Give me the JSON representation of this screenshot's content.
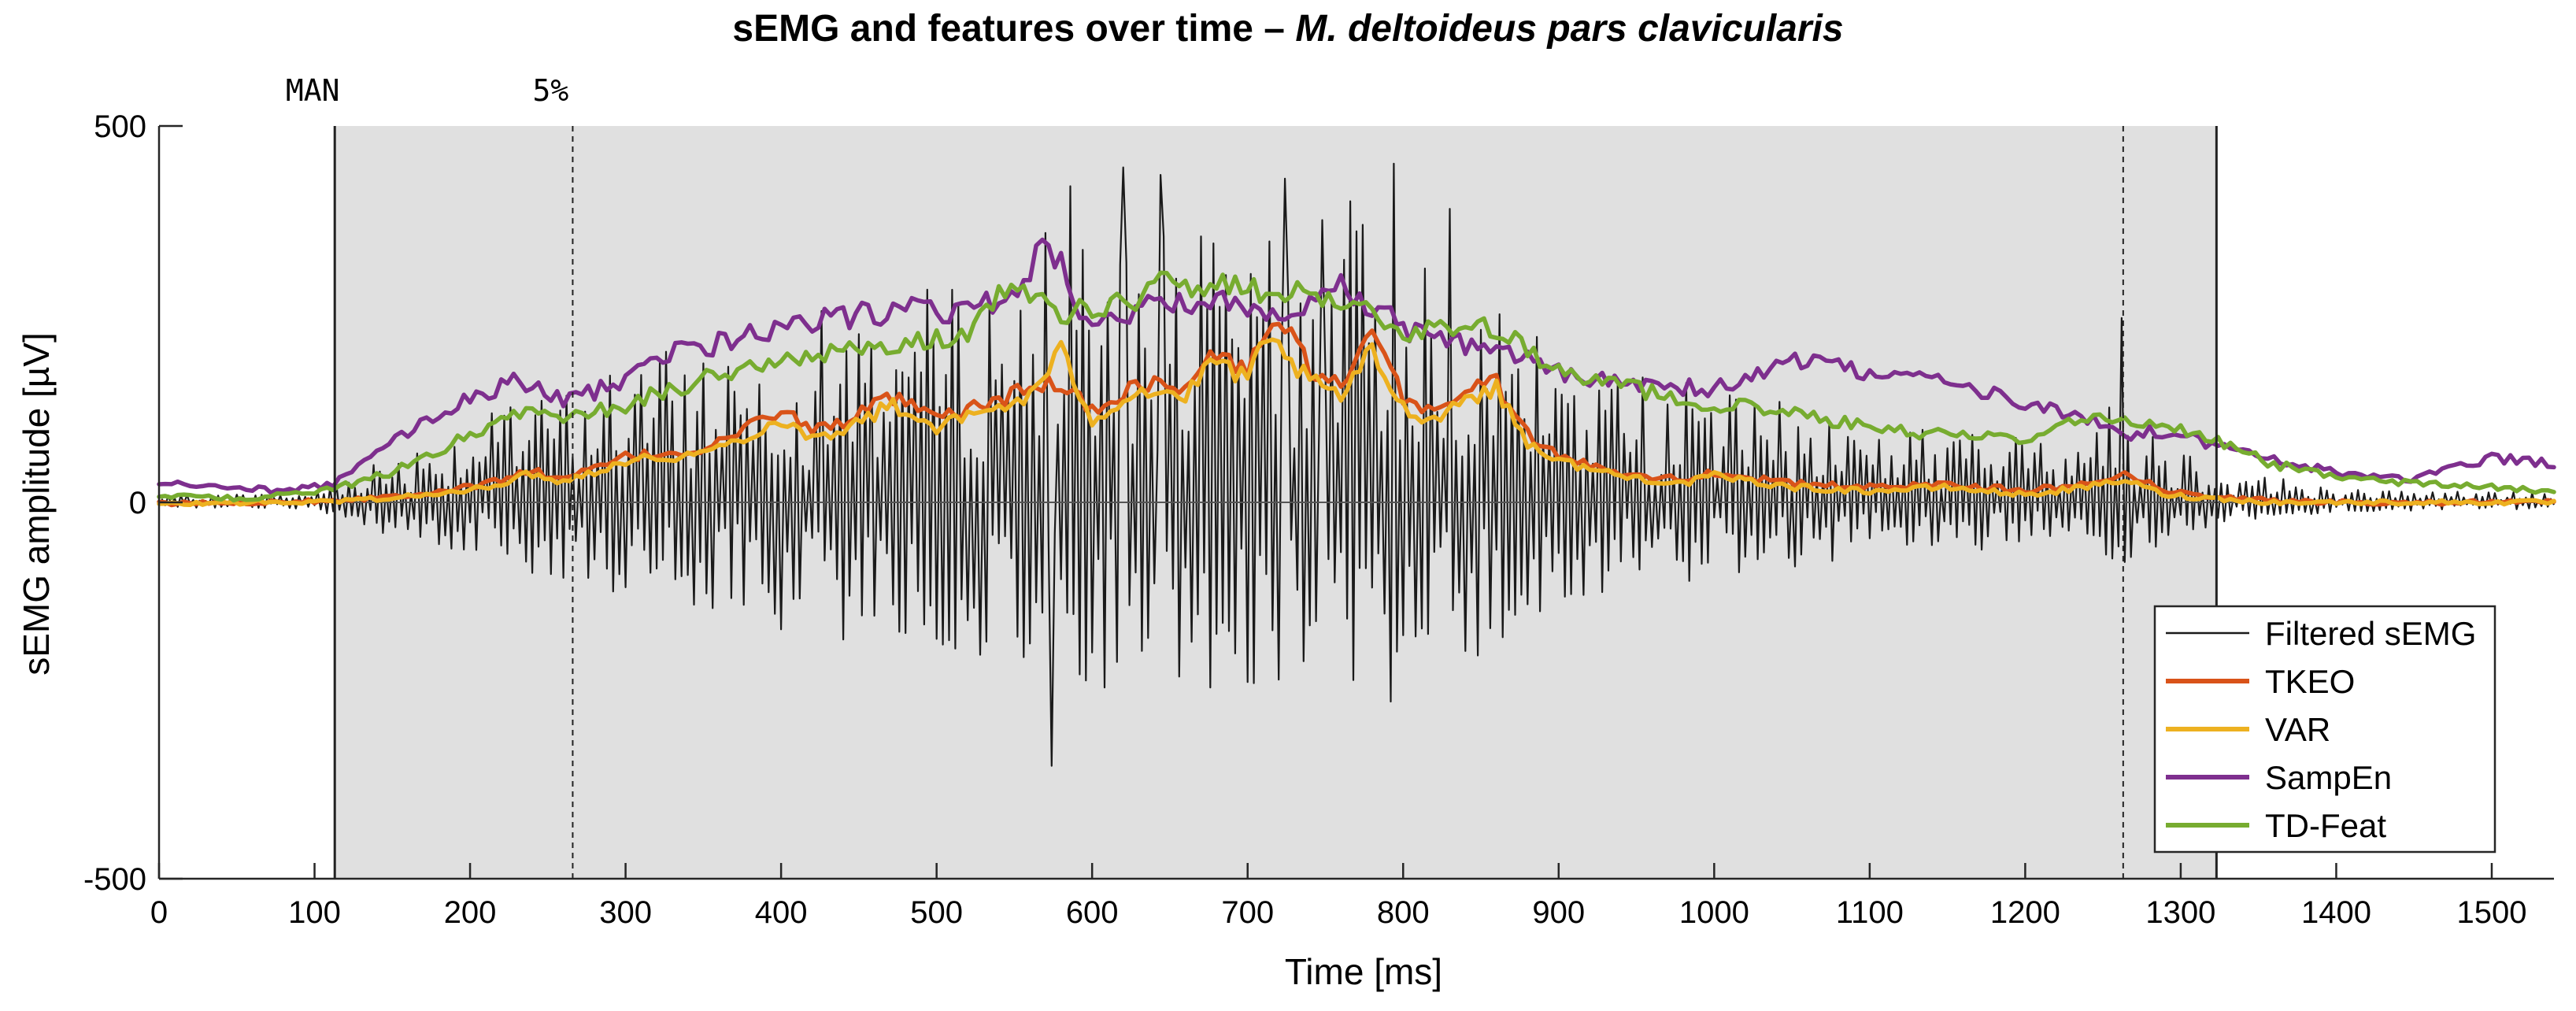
{
  "chart_data": {
    "type": "line",
    "title_main": "sEMG and features over time – ",
    "title_italic": "M. deltoideus pars clavicularis",
    "xlabel": "Time [ms]",
    "ylabel": "sEMG amplitude [µV]",
    "xlim": [
      0,
      1540
    ],
    "ylim": [
      -500,
      500
    ],
    "xticks": [
      0,
      100,
      200,
      300,
      400,
      500,
      600,
      700,
      800,
      900,
      1000,
      1100,
      1200,
      1300,
      1400,
      1500
    ],
    "yticks": [
      500,
      0,
      -500
    ],
    "shaded_region": {
      "x_start": 113,
      "x_end": 1323,
      "color": "#e0e0e0"
    },
    "markers": [
      {
        "x": 113,
        "label": "MAN",
        "style": "solid"
      },
      {
        "x": 266,
        "label": "5%",
        "style": "dashed"
      },
      {
        "x": 1263,
        "label": "",
        "style": "dashed"
      },
      {
        "x": 1323,
        "label": "",
        "style": "solid"
      }
    ],
    "legend_position": "bottom-right",
    "series": [
      {
        "name": "Filtered sEMG",
        "color": "#1a1a1a",
        "kind": "envelope-signal",
        "envelope_x": [
          0,
          100,
          113,
          200,
          300,
          400,
          450,
          500,
          560,
          620,
          700,
          760,
          790,
          850,
          900,
          1000,
          1100,
          1200,
          1260,
          1320,
          1400,
          1540
        ],
        "envelope_y": [
          10,
          15,
          40,
          120,
          210,
          270,
          300,
          320,
          350,
          430,
          380,
          410,
          440,
          320,
          220,
          170,
          120,
          100,
          150,
          60,
          20,
          15
        ],
        "peaks_x": [
          620,
          645,
          725,
          748,
          767,
          795,
          830,
          587,
          574,
          1262,
          570
        ],
        "peaks_y": [
          445,
          435,
          430,
          375,
          400,
          450,
          390,
          420,
          -350,
          245,
          358
        ]
      },
      {
        "name": "TKEO",
        "color": "#d95319",
        "x": [
          0,
          50,
          100,
          113,
          150,
          200,
          240,
          260,
          300,
          350,
          380,
          400,
          420,
          450,
          470,
          500,
          530,
          560,
          580,
          600,
          630,
          660,
          680,
          700,
          710,
          720,
          740,
          760,
          780,
          800,
          820,
          840,
          860,
          880,
          900,
          940,
          980,
          1000,
          1050,
          1100,
          1150,
          1200,
          1240,
          1263,
          1290,
          1323,
          1360,
          1400,
          1450,
          1500,
          1540
        ],
        "y": [
          -2,
          0,
          2,
          3,
          8,
          20,
          42,
          30,
          60,
          70,
          100,
          125,
          95,
          115,
          140,
          110,
          130,
          150,
          160,
          120,
          160,
          150,
          200,
          170,
          230,
          240,
          180,
          150,
          220,
          140,
          120,
          150,
          160,
          90,
          60,
          40,
          30,
          40,
          25,
          20,
          25,
          15,
          25,
          40,
          15,
          8,
          2,
          0,
          0,
          0,
          0
        ]
      },
      {
        "name": "VAR",
        "color": "#edb120",
        "x": [
          0,
          50,
          100,
          113,
          150,
          200,
          240,
          260,
          300,
          350,
          380,
          400,
          420,
          450,
          470,
          500,
          530,
          560,
          580,
          600,
          630,
          660,
          680,
          700,
          710,
          720,
          740,
          760,
          780,
          800,
          820,
          840,
          860,
          880,
          900,
          940,
          980,
          1000,
          1050,
          1100,
          1150,
          1200,
          1240,
          1263,
          1290,
          1323,
          1360,
          1400,
          1450,
          1500,
          1540
        ],
        "y": [
          -3,
          0,
          0,
          2,
          6,
          15,
          38,
          28,
          55,
          65,
          90,
          110,
          85,
          105,
          130,
          100,
          120,
          140,
          200,
          110,
          150,
          140,
          190,
          160,
          210,
          205,
          160,
          140,
          200,
          125,
          110,
          140,
          150,
          80,
          55,
          35,
          25,
          35,
          20,
          15,
          20,
          10,
          20,
          30,
          10,
          5,
          0,
          0,
          0,
          0,
          0
        ]
      },
      {
        "name": "SampEn",
        "color": "#7e2f8e",
        "x": [
          0,
          40,
          80,
          113,
          150,
          200,
          230,
          260,
          300,
          330,
          360,
          400,
          440,
          480,
          520,
          550,
          570,
          600,
          640,
          680,
          720,
          760,
          800,
          840,
          870,
          900,
          950,
          1000,
          1050,
          1100,
          1150,
          1200,
          1240,
          1263,
          1290,
          1323,
          1360,
          1400,
          1450,
          1500,
          1540
        ],
        "y": [
          25,
          20,
          15,
          25,
          80,
          140,
          160,
          135,
          160,
          200,
          210,
          230,
          245,
          260,
          255,
          275,
          350,
          230,
          260,
          270,
          250,
          290,
          230,
          210,
          200,
          170,
          160,
          150,
          190,
          170,
          160,
          130,
          110,
          90,
          95,
          75,
          55,
          40,
          30,
          60,
          50
        ]
      },
      {
        "name": "TD-Feat",
        "color": "#77ac30",
        "x": [
          0,
          50,
          100,
          113,
          150,
          200,
          230,
          260,
          300,
          330,
          360,
          400,
          440,
          480,
          520,
          550,
          580,
          620,
          640,
          680,
          720,
          750,
          780,
          800,
          840,
          870,
          900,
          950,
          1000,
          1050,
          1100,
          1150,
          1200,
          1240,
          1263,
          1290,
          1323,
          1360,
          1400,
          1450,
          1500,
          1540
        ],
        "y": [
          10,
          5,
          12,
          18,
          40,
          90,
          120,
          110,
          130,
          150,
          170,
          190,
          200,
          210,
          230,
          290,
          250,
          260,
          295,
          290,
          270,
          280,
          250,
          230,
          240,
          220,
          175,
          150,
          130,
          120,
          100,
          90,
          85,
          110,
          115,
          100,
          80,
          50,
          35,
          25,
          20,
          15
        ]
      }
    ]
  }
}
